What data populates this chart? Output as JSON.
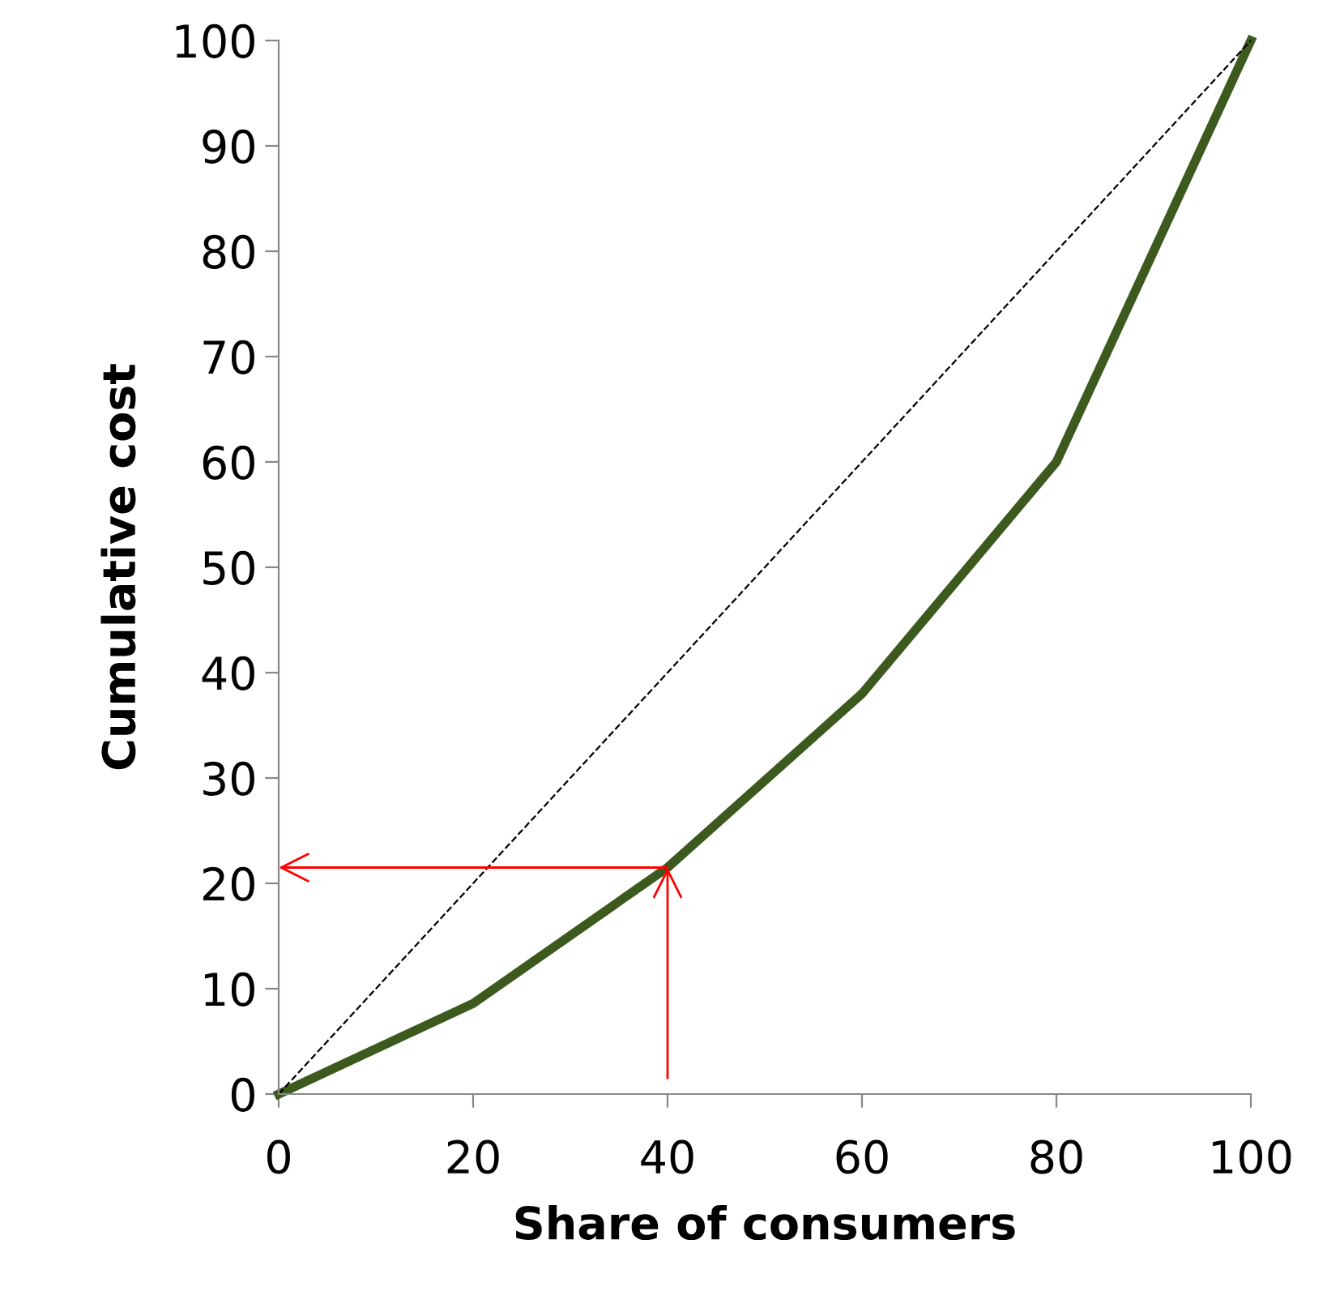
{
  "chart_data": {
    "type": "line",
    "xlabel": "Share of consumers",
    "ylabel": "Cumulative cost",
    "x": [
      0,
      20,
      40,
      60,
      80,
      100
    ],
    "series": [
      {
        "color": "#3d5a1e",
        "values": [
          0,
          8.6,
          21.5,
          38,
          60,
          100
        ],
        "line_style": "solid"
      },
      {
        "color": "#000000",
        "x": [
          0,
          100
        ],
        "values": [
          0,
          100
        ],
        "line_style": "dashed"
      }
    ],
    "xlim": [
      0,
      100
    ],
    "ylim": [
      0,
      100
    ],
    "xticks": [
      0,
      20,
      40,
      60,
      80,
      100
    ],
    "yticks": [
      0,
      10,
      20,
      30,
      40,
      50,
      60,
      70,
      80,
      90,
      100
    ],
    "grid": false,
    "legend": false,
    "marker": "none"
  }
}
